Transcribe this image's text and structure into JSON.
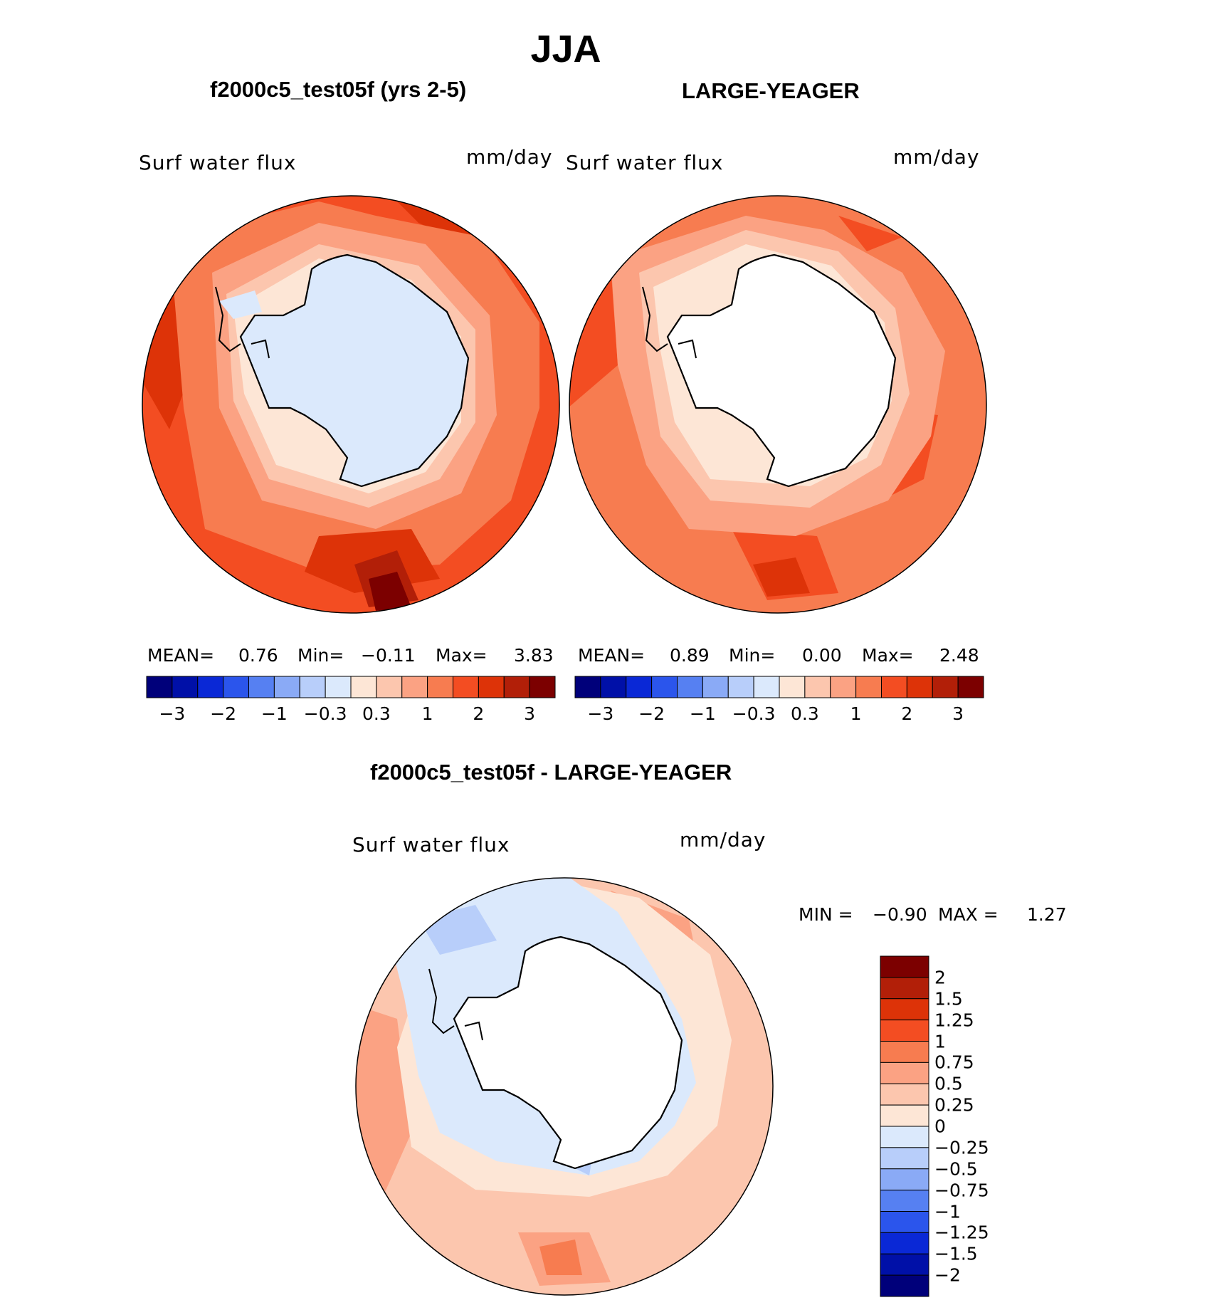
{
  "figure": {
    "title": "JJA"
  },
  "panels": [
    {
      "title": "f2000c5_test05f (yrs 2-5)",
      "variable": "Surf water flux",
      "units": "mm/day",
      "stats": {
        "mean_label": "MEAN=",
        "mean": "0.76",
        "min_label": "Min=",
        "min": "−0.11",
        "max_label": "Max=",
        "max": "3.83"
      }
    },
    {
      "title": "LARGE-YEAGER",
      "variable": "Surf water flux",
      "units": "mm/day",
      "stats": {
        "mean_label": "MEAN=",
        "mean": "0.89",
        "min_label": "Min=",
        "min": "0.00",
        "max_label": "Max=",
        "max": "2.48"
      }
    },
    {
      "title": "f2000c5_test05f - LARGE-YEAGER",
      "variable": "Surf water flux",
      "units": "mm/day",
      "stats": {
        "min_label": "MIN =",
        "min": "−0.90",
        "max_label": "MAX =",
        "max": "1.27"
      }
    }
  ],
  "colorbar_top": {
    "colors": [
      "#00007a",
      "#0010a8",
      "#0a28d6",
      "#2b55ec",
      "#5680f2",
      "#8aaaf6",
      "#b8cefa",
      "#dbe9fc",
      "#fde6d6",
      "#fcc6ae",
      "#fba283",
      "#f77c50",
      "#f34d22",
      "#dd3308",
      "#b21f08",
      "#7c0000"
    ],
    "tick_labels": [
      "−3",
      "−2",
      "−1",
      "−0.3",
      "0.3",
      "1",
      "2",
      "3"
    ]
  },
  "colorbar_diff": {
    "colors": [
      "#00007a",
      "#0010a8",
      "#0a28d6",
      "#2b55ec",
      "#5680f2",
      "#8aaaf6",
      "#b8cefa",
      "#dbe9fc",
      "#fde6d6",
      "#fcc6ae",
      "#fba283",
      "#f77c50",
      "#f34d22",
      "#dd3308",
      "#b21f08",
      "#7c0000"
    ],
    "tick_labels": [
      "2",
      "1.5",
      "1.25",
      "1",
      "0.75",
      "0.5",
      "0.25",
      "0",
      "−0.25",
      "−0.5",
      "−0.75",
      "−1",
      "−1.25",
      "−1.5",
      "−2"
    ]
  }
}
